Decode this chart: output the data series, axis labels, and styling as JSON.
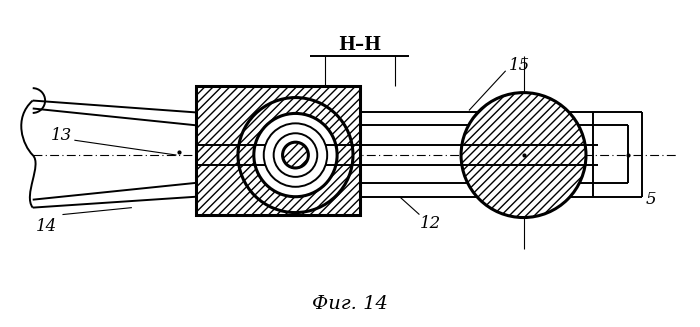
{
  "title": "Фиг. 14",
  "section_label": "Н–Н",
  "bg_color": "#ffffff",
  "line_color": "#000000",
  "figsize": [
    7.0,
    3.27
  ],
  "dpi": 100
}
